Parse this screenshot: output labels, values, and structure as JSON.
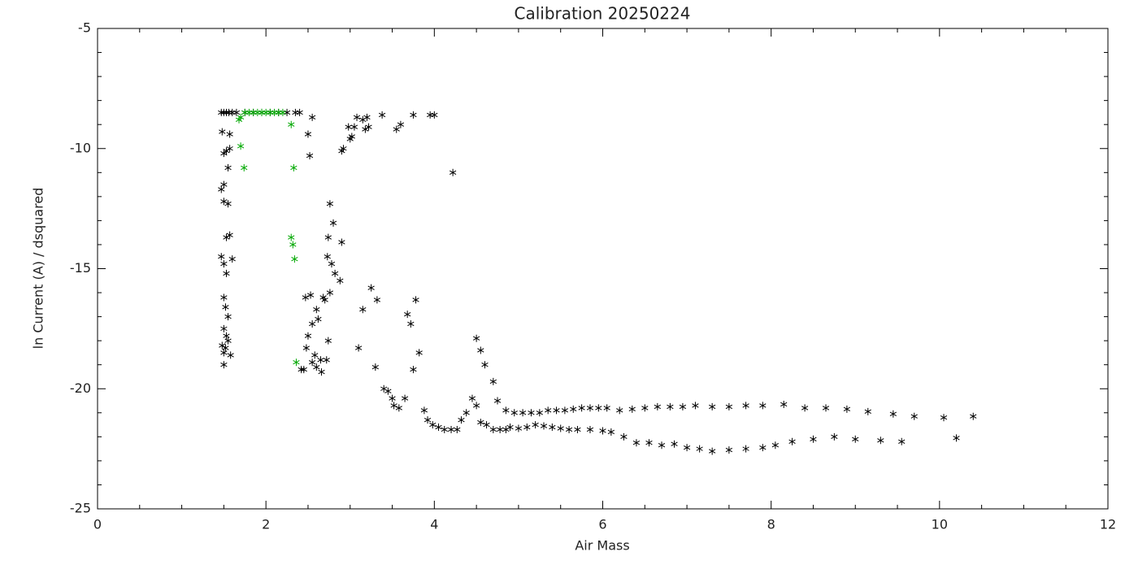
{
  "chart_data": {
    "type": "scatter",
    "title": "Calibration 20250224",
    "xlabel": "Air Mass",
    "ylabel": "ln Current (A) / dsquared",
    "xlim": [
      0,
      12
    ],
    "ylim": [
      -25,
      -5
    ],
    "xticks": [
      0,
      2,
      4,
      6,
      8,
      10,
      12
    ],
    "yticks": [
      -25,
      -20,
      -15,
      -10,
      -5
    ],
    "xminorticks": [
      0.5,
      1,
      1.5,
      2.5,
      3,
      3.5,
      4.5,
      5,
      5.5,
      6.5,
      7,
      7.5,
      8.5,
      9,
      9.5,
      10.5,
      11,
      11.5
    ],
    "yminorticks": [
      -24,
      -23,
      -22,
      -21,
      -19,
      -18,
      -17,
      -16,
      -14,
      -13,
      -12,
      -11,
      -9,
      -8,
      -7,
      -6
    ],
    "series": [
      {
        "color": "#000000",
        "x": [
          1.47,
          1.5,
          1.53,
          1.56,
          1.6,
          1.48,
          1.5,
          1.53,
          1.57,
          1.55,
          1.5,
          1.47,
          1.5,
          1.55,
          1.53,
          1.57,
          1.47,
          1.5,
          1.53,
          1.6,
          1.5,
          1.52,
          1.55,
          1.5,
          1.53,
          1.48,
          1.5,
          1.52,
          1.55,
          1.58,
          1.5,
          1.57,
          1.65,
          1.75,
          1.85,
          1.95,
          2.05,
          2.15,
          2.25,
          2.35,
          2.4,
          2.45,
          2.42,
          2.48,
          2.5,
          2.47,
          2.53,
          2.55,
          2.6,
          2.58,
          2.62,
          2.65,
          2.66,
          2.7,
          2.68,
          2.72,
          2.74,
          2.76,
          2.73,
          2.78,
          2.82,
          2.88,
          2.9,
          2.8,
          2.76,
          2.74,
          2.55,
          2.6,
          2.5,
          2.52,
          2.55,
          2.9,
          2.92,
          3.0,
          3.02,
          3.05,
          3.08,
          2.98,
          3.15,
          3.2,
          3.22,
          3.18,
          3.38,
          3.55,
          3.6,
          3.75,
          3.95,
          4.0,
          4.22,
          3.1,
          3.15,
          3.25,
          3.32,
          3.3,
          3.4,
          3.45,
          3.5,
          3.52,
          3.58,
          3.65,
          3.68,
          3.72,
          3.78,
          3.75,
          3.82,
          3.88,
          3.92,
          3.98,
          4.05,
          4.12,
          4.2,
          4.27,
          4.32,
          4.38,
          4.45,
          4.5,
          4.55,
          4.6,
          4.5,
          4.55,
          4.62,
          4.7,
          4.75,
          4.7,
          4.78,
          4.85,
          4.9,
          4.85,
          4.95,
          5.05,
          5.15,
          5.25,
          5.35,
          5.45,
          5.55,
          5.65,
          5.75,
          5.85,
          5.95,
          6.05,
          6.2,
          6.35,
          6.5,
          6.65,
          6.8,
          6.95,
          7.1,
          7.3,
          7.5,
          7.7,
          7.9,
          8.15,
          8.4,
          8.65,
          8.9,
          9.15,
          9.45,
          9.7,
          10.05,
          10.4,
          5.0,
          5.1,
          5.2,
          5.3,
          5.4,
          5.5,
          5.6,
          5.7,
          5.85,
          6.0,
          6.1,
          6.25,
          6.4,
          6.55,
          6.7,
          6.85,
          7.0,
          7.15,
          7.3,
          7.5,
          7.7,
          7.9,
          8.05,
          8.25,
          8.5,
          8.75,
          9.0,
          9.3,
          9.55,
          10.2
        ],
        "values": [
          -8.5,
          -8.5,
          -8.5,
          -8.5,
          -8.5,
          -9.3,
          -10.2,
          -10.1,
          -10.0,
          -10.8,
          -11.5,
          -11.7,
          -12.2,
          -12.3,
          -13.7,
          -13.6,
          -14.5,
          -14.8,
          -15.2,
          -14.6,
          -16.2,
          -16.6,
          -17.0,
          -17.5,
          -17.8,
          -18.2,
          -18.5,
          -18.3,
          -18.0,
          -18.6,
          -19.0,
          -9.4,
          -8.5,
          -8.5,
          -8.5,
          -8.5,
          -8.5,
          -8.5,
          -8.5,
          -8.5,
          -8.5,
          -19.2,
          -19.2,
          -18.3,
          -17.8,
          -16.2,
          -16.1,
          -17.3,
          -16.7,
          -18.6,
          -17.1,
          -18.8,
          -19.3,
          -16.3,
          -16.2,
          -18.8,
          -18.0,
          -16.0,
          -14.5,
          -14.8,
          -15.2,
          -15.5,
          -13.9,
          -13.1,
          -12.3,
          -13.7,
          -18.9,
          -19.1,
          -9.4,
          -10.3,
          -8.7,
          -10.1,
          -10.0,
          -9.6,
          -9.5,
          -9.1,
          -8.7,
          -9.1,
          -8.8,
          -8.7,
          -9.1,
          -9.2,
          -8.6,
          -9.2,
          -9.0,
          -8.6,
          -8.6,
          -8.6,
          -11.0,
          -18.3,
          -16.7,
          -15.8,
          -16.3,
          -19.1,
          -20.0,
          -20.1,
          -20.4,
          -20.7,
          -20.8,
          -20.4,
          -16.9,
          -17.3,
          -16.3,
          -19.2,
          -18.5,
          -20.9,
          -21.3,
          -21.5,
          -21.6,
          -21.7,
          -21.7,
          -21.7,
          -21.3,
          -21.0,
          -20.4,
          -17.9,
          -18.4,
          -19.0,
          -20.7,
          -21.4,
          -21.5,
          -19.7,
          -20.5,
          -21.7,
          -21.7,
          -21.7,
          -21.6,
          -20.9,
          -21.0,
          -21.0,
          -21.0,
          -21.0,
          -20.9,
          -20.9,
          -20.9,
          -20.85,
          -20.8,
          -20.8,
          -20.8,
          -20.8,
          -20.9,
          -20.85,
          -20.8,
          -20.75,
          -20.75,
          -20.75,
          -20.7,
          -20.75,
          -20.75,
          -20.7,
          -20.7,
          -20.65,
          -20.8,
          -20.8,
          -20.85,
          -20.95,
          -21.05,
          -21.15,
          -21.2,
          -21.15,
          -21.65,
          -21.6,
          -21.5,
          -21.55,
          -21.6,
          -21.65,
          -21.7,
          -21.7,
          -21.7,
          -21.75,
          -21.8,
          -22.0,
          -22.25,
          -22.25,
          -22.35,
          -22.3,
          -22.45,
          -22.5,
          -22.6,
          -22.55,
          -22.5,
          -22.45,
          -22.35,
          -22.2,
          -22.1,
          -22.0,
          -22.1,
          -22.15,
          -22.2,
          -22.05
        ]
      },
      {
        "color": "#00a800",
        "x": [
          1.68,
          1.7,
          1.75,
          1.8,
          1.85,
          1.9,
          1.95,
          2.0,
          2.05,
          2.1,
          2.15,
          2.2,
          1.7,
          1.74,
          2.3,
          2.33,
          2.3,
          2.32,
          2.34,
          2.36
        ],
        "values": [
          -8.8,
          -8.7,
          -8.5,
          -8.5,
          -8.5,
          -8.5,
          -8.5,
          -8.5,
          -8.5,
          -8.5,
          -8.5,
          -8.5,
          -9.9,
          -10.8,
          -9.0,
          -10.8,
          -13.7,
          -14.0,
          -14.6,
          -18.9
        ]
      }
    ]
  }
}
